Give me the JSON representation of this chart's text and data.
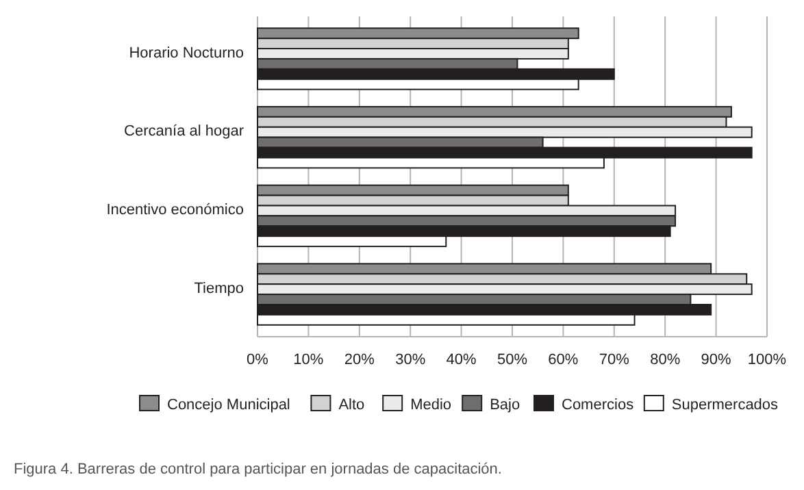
{
  "chart_data": {
    "type": "bar",
    "orientation": "horizontal",
    "categories": [
      "Horario Nocturno",
      "Cercanía al hogar",
      "Incentivo económico",
      "Tiempo"
    ],
    "series": [
      {
        "name": "Concejo Municipal",
        "color": "#8c8c8c",
        "values": [
          63,
          93,
          61,
          89
        ]
      },
      {
        "name": "Alto",
        "color": "#d2d2d2",
        "values": [
          61,
          92,
          61,
          96
        ]
      },
      {
        "name": "Medio",
        "color": "#ebebeb",
        "values": [
          61,
          97,
          82,
          97
        ]
      },
      {
        "name": "Bajo",
        "color": "#6e6e6e",
        "values": [
          51,
          56,
          82,
          85
        ]
      },
      {
        "name": "Comercios",
        "color": "#231f20",
        "values": [
          70,
          97,
          81,
          89
        ]
      },
      {
        "name": "Supermercados",
        "color": "#ffffff",
        "values": [
          63,
          68,
          37,
          74
        ]
      }
    ],
    "xlim": [
      0,
      100
    ],
    "xticks": [
      {
        "value": 0,
        "label": "0%"
      },
      {
        "value": 10,
        "label": "10%"
      },
      {
        "value": 20,
        "label": "20%"
      },
      {
        "value": 30,
        "label": "30%"
      },
      {
        "value": 40,
        "label": "40%"
      },
      {
        "value": 50,
        "label": "50%"
      },
      {
        "value": 60,
        "label": "60%"
      },
      {
        "value": 70,
        "label": "70%"
      },
      {
        "value": 80,
        "label": "80%"
      },
      {
        "value": 90,
        "label": "90%"
      },
      {
        "value": 100,
        "label": "100%"
      }
    ],
    "grid": "x",
    "legend": "bottom",
    "annotations": [
      "Figura 4. Barreras de control para participar en jornadas de capacitación."
    ]
  }
}
